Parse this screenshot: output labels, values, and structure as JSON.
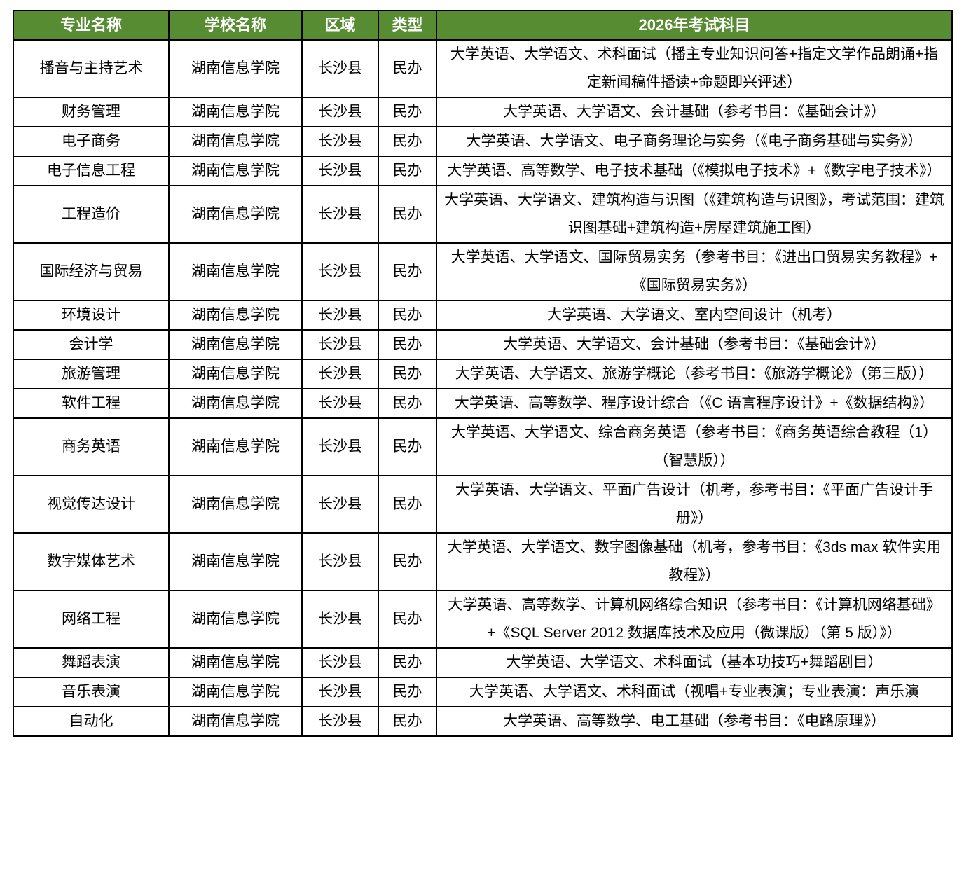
{
  "colors": {
    "header_bg": "#588C32",
    "header_text": "#FFFFFF",
    "border": "#000000",
    "body_text": "#000000",
    "body_bg": "#FFFFFF"
  },
  "table": {
    "headers": [
      "专业名称",
      "学校名称",
      "区域",
      "类型",
      "2026年考试科目"
    ],
    "rows": [
      {
        "major": "播音与主持艺术",
        "school": "湖南信息学院",
        "region": "长沙县",
        "type": "民办",
        "subjects": "大学英语、大学语文、术科面试（播主专业知识问答+指定文学作品朗诵+指定新闻稿件播读+命题即兴评述）"
      },
      {
        "major": "财务管理",
        "school": "湖南信息学院",
        "region": "长沙县",
        "type": "民办",
        "subjects": "大学英语、大学语文、会计基础（参考书目：《基础会计》）"
      },
      {
        "major": "电子商务",
        "school": "湖南信息学院",
        "region": "长沙县",
        "type": "民办",
        "subjects": "大学英语、大学语文、电子商务理论与实务（《电子商务基础与实务》）"
      },
      {
        "major": "电子信息工程",
        "school": "湖南信息学院",
        "region": "长沙县",
        "type": "民办",
        "subjects": "大学英语、高等数学、电子技术基础（《模拟电子技术》+《数字电子技术》）"
      },
      {
        "major": "工程造价",
        "school": "湖南信息学院",
        "region": "长沙县",
        "type": "民办",
        "subjects": "大学英语、大学语文、建筑构造与识图（《建筑构造与识图》，考试范围：建筑识图基础+建筑构造+房屋建筑施工图）"
      },
      {
        "major": "国际经济与贸易",
        "school": "湖南信息学院",
        "region": "长沙县",
        "type": "民办",
        "subjects": "大学英语、大学语文、国际贸易实务（参考书目：《进出口贸易实务教程》+《国际贸易实务》）"
      },
      {
        "major": "环境设计",
        "school": "湖南信息学院",
        "region": "长沙县",
        "type": "民办",
        "subjects": "大学英语、大学语文、室内空间设计（机考）"
      },
      {
        "major": "会计学",
        "school": "湖南信息学院",
        "region": "长沙县",
        "type": "民办",
        "subjects": "大学英语、大学语文、会计基础（参考书目：《基础会计》）"
      },
      {
        "major": "旅游管理",
        "school": "湖南信息学院",
        "region": "长沙县",
        "type": "民办",
        "subjects": "大学英语、大学语文、旅游学概论（参考书目：《旅游学概论》（第三版））"
      },
      {
        "major": "软件工程",
        "school": "湖南信息学院",
        "region": "长沙县",
        "type": "民办",
        "subjects": "大学英语、高等数学、程序设计综合（《C 语言程序设计》+《数据结构》）"
      },
      {
        "major": "商务英语",
        "school": "湖南信息学院",
        "region": "长沙县",
        "type": "民办",
        "subjects": "大学英语、大学语文、综合商务英语（参考书目：《商务英语综合教程（1）（智慧版））"
      },
      {
        "major": "视觉传达设计",
        "school": "湖南信息学院",
        "region": "长沙县",
        "type": "民办",
        "subjects": "大学英语、大学语文、平面广告设计（机考，参考书目：《平面广告设计手册》）"
      },
      {
        "major": "数字媒体艺术",
        "school": "湖南信息学院",
        "region": "长沙县",
        "type": "民办",
        "subjects": "大学英语、大学语文、数字图像基础（机考，参考书目：《3ds max 软件实用教程》）"
      },
      {
        "major": "网络工程",
        "school": "湖南信息学院",
        "region": "长沙县",
        "type": "民办",
        "subjects": "大学英语、高等数学、计算机网络综合知识（参考书目：《计算机网络基础》+《SQL Server 2012 数据库技术及应用（微课版）（第 5 版）》）"
      },
      {
        "major": "舞蹈表演",
        "school": "湖南信息学院",
        "region": "长沙县",
        "type": "民办",
        "subjects": "大学英语、大学语文、术科面试（基本功技巧+舞蹈剧目）"
      },
      {
        "major": "音乐表演",
        "school": "湖南信息学院",
        "region": "长沙县",
        "type": "民办",
        "subjects": "大学英语、大学语文、术科面试（视唱+专业表演；专业表演：声乐演"
      },
      {
        "major": "自动化",
        "school": "湖南信息学院",
        "region": "长沙县",
        "type": "民办",
        "subjects": "大学英语、高等数学、电工基础（参考书目：《电路原理》）"
      }
    ]
  }
}
